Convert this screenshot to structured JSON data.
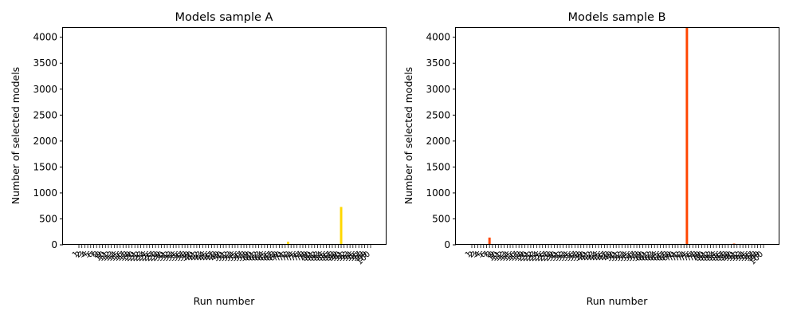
{
  "chart_data": [
    {
      "type": "bar",
      "title": "Models sample A",
      "xlabel": "Run number",
      "ylabel": "Number of selected models",
      "ylim": [
        0,
        4180
      ],
      "yticks": [
        0,
        500,
        1000,
        1500,
        2000,
        2500,
        3000,
        3500,
        4000
      ],
      "color": "#FFD700",
      "grid": false,
      "categories": [
        "1",
        "2",
        "3",
        "4",
        "5",
        "6",
        "7",
        "8",
        "9",
        "10",
        "11",
        "12",
        "13",
        "14",
        "15",
        "16",
        "17",
        "18",
        "19",
        "20",
        "21",
        "22",
        "23",
        "24",
        "25",
        "26",
        "27",
        "28",
        "29",
        "30",
        "31",
        "32",
        "33",
        "34",
        "35",
        "36",
        "37",
        "38",
        "39",
        "40",
        "41",
        "42",
        "43",
        "44",
        "45",
        "46",
        "47",
        "48",
        "49",
        "50",
        "51",
        "52",
        "53",
        "54",
        "55",
        "56",
        "57",
        "58",
        "59",
        "60",
        "61",
        "62",
        "63",
        "64",
        "65",
        "66",
        "67",
        "68",
        "69",
        "70",
        "71",
        "72",
        "73",
        "74",
        "75",
        "76",
        "77",
        "78",
        "79",
        "80",
        "81",
        "82",
        "83",
        "84",
        "85",
        "86",
        "87",
        "88",
        "89",
        "90",
        "91",
        "92",
        "93",
        "94",
        "95",
        "96",
        "97",
        "98",
        "99",
        "100"
      ],
      "values": [
        0,
        0,
        0,
        0,
        0,
        0,
        0,
        0,
        0,
        0,
        0,
        0,
        0,
        0,
        0,
        0,
        0,
        0,
        0,
        0,
        0,
        0,
        0,
        0,
        0,
        0,
        0,
        0,
        0,
        0,
        0,
        0,
        0,
        0,
        0,
        0,
        0,
        0,
        0,
        0,
        0,
        0,
        0,
        0,
        0,
        0,
        0,
        0,
        0,
        0,
        0,
        0,
        5,
        0,
        0,
        0,
        0,
        0,
        0,
        0,
        0,
        0,
        0,
        0,
        0,
        0,
        0,
        0,
        0,
        0,
        0,
        60,
        0,
        0,
        0,
        0,
        0,
        0,
        0,
        0,
        0,
        0,
        0,
        0,
        0,
        0,
        0,
        0,
        0,
        730,
        0,
        0,
        0,
        0,
        0,
        0,
        0,
        0,
        0,
        0
      ]
    },
    {
      "type": "bar",
      "title": "Models sample B",
      "xlabel": "Run number",
      "ylabel": "Number of selected models",
      "ylim": [
        0,
        4180
      ],
      "yticks": [
        0,
        500,
        1000,
        1500,
        2000,
        2500,
        3000,
        3500,
        4000
      ],
      "color": "#FF4500",
      "grid": false,
      "categories": [
        "1",
        "2",
        "3",
        "4",
        "5",
        "6",
        "7",
        "8",
        "9",
        "10",
        "11",
        "12",
        "13",
        "14",
        "15",
        "16",
        "17",
        "18",
        "19",
        "20",
        "21",
        "22",
        "23",
        "24",
        "25",
        "26",
        "27",
        "28",
        "29",
        "30",
        "31",
        "32",
        "33",
        "34",
        "35",
        "36",
        "37",
        "38",
        "39",
        "40",
        "41",
        "42",
        "43",
        "44",
        "45",
        "46",
        "47",
        "48",
        "49",
        "50",
        "51",
        "52",
        "53",
        "54",
        "55",
        "56",
        "57",
        "58",
        "59",
        "60",
        "61",
        "62",
        "63",
        "64",
        "65",
        "66",
        "67",
        "68",
        "69",
        "70",
        "71",
        "72",
        "73",
        "74",
        "75",
        "76",
        "77",
        "78",
        "79",
        "80",
        "81",
        "82",
        "83",
        "84",
        "85",
        "86",
        "87",
        "88",
        "89",
        "90",
        "91",
        "92",
        "93",
        "94",
        "95",
        "96",
        "97",
        "98",
        "99",
        "100"
      ],
      "values": [
        0,
        0,
        0,
        0,
        0,
        0,
        140,
        0,
        0,
        0,
        0,
        0,
        0,
        0,
        0,
        0,
        0,
        0,
        0,
        0,
        0,
        0,
        0,
        0,
        0,
        0,
        0,
        0,
        0,
        0,
        0,
        0,
        0,
        0,
        0,
        0,
        0,
        0,
        0,
        0,
        0,
        0,
        0,
        0,
        0,
        0,
        0,
        0,
        0,
        0,
        0,
        0,
        0,
        0,
        0,
        0,
        0,
        0,
        0,
        0,
        0,
        0,
        0,
        0,
        0,
        0,
        0,
        0,
        0,
        0,
        0,
        0,
        0,
        4180,
        0,
        0,
        0,
        0,
        0,
        0,
        0,
        0,
        0,
        0,
        0,
        0,
        0,
        0,
        0,
        25,
        0,
        0,
        0,
        0,
        0,
        0,
        0,
        0,
        0,
        0
      ]
    }
  ]
}
